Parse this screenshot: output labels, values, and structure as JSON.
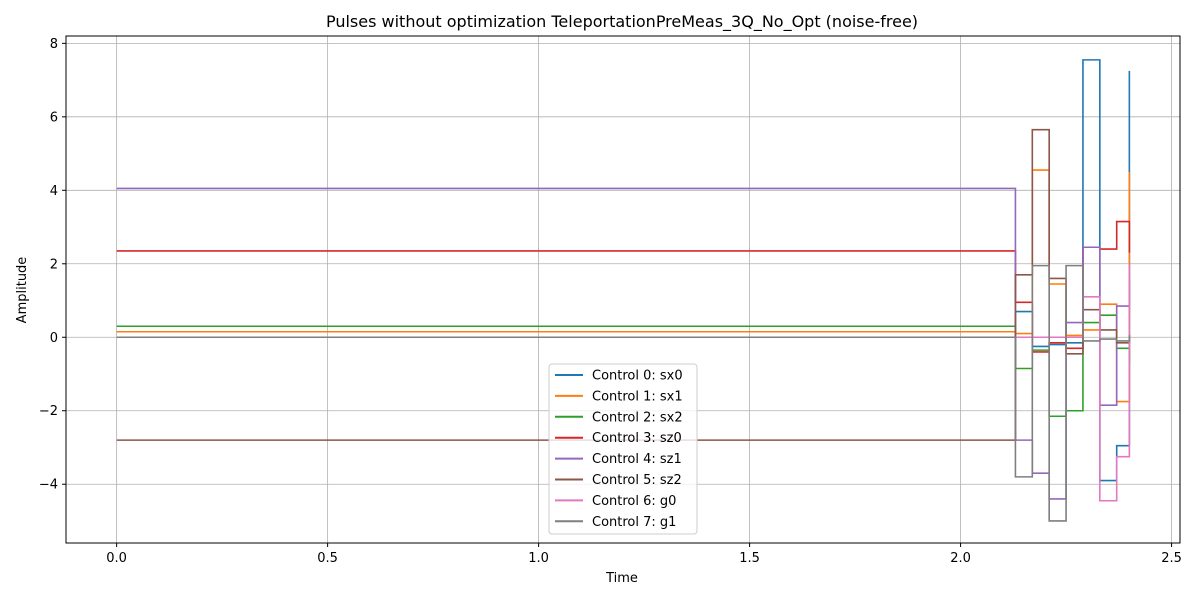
{
  "chart_data": {
    "type": "line",
    "drawstyle": "steps-post",
    "title": "Pulses without optimization TeleportationPreMeas_3Q_No_Opt (noise-free)",
    "xlabel": "Time",
    "ylabel": "Amplitude",
    "xlim": [
      -0.12,
      2.52
    ],
    "ylim": [
      -5.6,
      8.2
    ],
    "xticks": [
      0.0,
      0.5,
      1.0,
      1.5,
      2.0,
      2.5
    ],
    "xtick_labels": [
      "0.0",
      "0.5",
      "1.0",
      "1.5",
      "2.0",
      "2.5"
    ],
    "yticks": [
      -4,
      -2,
      0,
      2,
      4,
      6,
      8
    ],
    "ytick_labels": [
      "−4",
      "−2",
      "0",
      "2",
      "4",
      "6",
      "8"
    ],
    "grid": true,
    "legend_position": "lower-center",
    "x": [
      0.0,
      2.13,
      2.17,
      2.21,
      2.25,
      2.29,
      2.33,
      2.37,
      2.4
    ],
    "series": [
      {
        "name": "Control 0: sx0",
        "color": "#1f77b4",
        "values": [
          0.15,
          0.7,
          -0.25,
          -0.2,
          -0.15,
          7.55,
          -3.9,
          -2.95,
          7.25
        ]
      },
      {
        "name": "Control 1: sx1",
        "color": "#ff7f0e",
        "values": [
          0.15,
          0.1,
          4.55,
          1.45,
          0.05,
          0.2,
          0.9,
          -1.75,
          4.5
        ]
      },
      {
        "name": "Control 2: sx2",
        "color": "#2ca02c",
        "values": [
          0.3,
          -0.85,
          -0.35,
          -2.15,
          -2.0,
          0.4,
          0.6,
          -0.3,
          -0.7
        ]
      },
      {
        "name": "Control 3: sz0",
        "color": "#d62728",
        "values": [
          2.35,
          0.95,
          -0.4,
          -0.15,
          -0.3,
          2.45,
          2.4,
          3.15,
          2.3
        ]
      },
      {
        "name": "Control 4: sz1",
        "color": "#9467bd",
        "values": [
          4.05,
          -2.8,
          -3.7,
          -4.4,
          0.4,
          2.45,
          -1.85,
          0.85,
          1.6
        ]
      },
      {
        "name": "Control 5: sz2",
        "color": "#8c564b",
        "values": [
          -2.8,
          1.7,
          5.65,
          1.6,
          -0.45,
          0.75,
          0.2,
          -0.15,
          0.1
        ]
      },
      {
        "name": "Control 6: g0",
        "color": "#e377c2",
        "values": [
          0.0,
          0.0,
          0.0,
          0.0,
          0.0,
          1.1,
          -4.45,
          -3.25,
          2.0
        ]
      },
      {
        "name": "Control 7: g1",
        "color": "#7f7f7f",
        "values": [
          0.0,
          -3.8,
          1.95,
          -5.0,
          1.95,
          -0.1,
          -0.05,
          -0.1,
          0.05
        ]
      }
    ]
  }
}
